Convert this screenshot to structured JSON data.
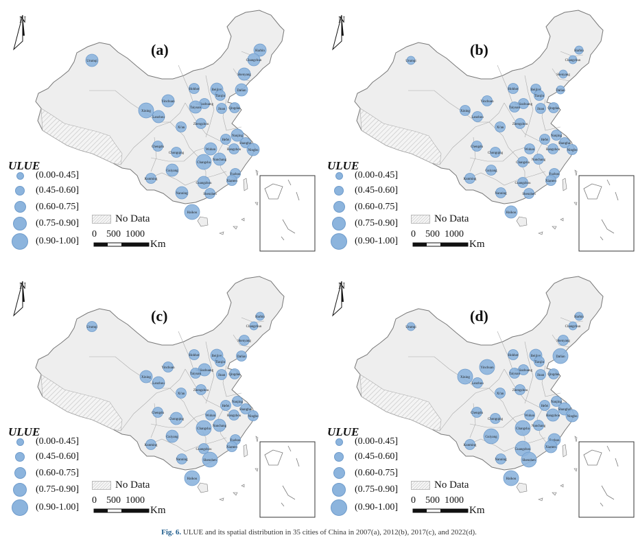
{
  "panels": [
    {
      "id": "a",
      "label": "(a)",
      "sizes": [
        1,
        1,
        1,
        1,
        1,
        1,
        1,
        1,
        1,
        1,
        1,
        1,
        1,
        1,
        1,
        1,
        1,
        1,
        1,
        1,
        1,
        1,
        1,
        1,
        1,
        1,
        1,
        1,
        1,
        1,
        1,
        1,
        1,
        1,
        1
      ]
    },
    {
      "id": "b",
      "label": "(b)",
      "sizes": [
        1,
        1,
        1,
        1,
        1,
        1,
        1,
        1,
        1,
        1,
        1,
        1,
        1,
        1,
        1,
        1,
        1,
        1,
        1,
        1,
        1,
        1,
        1,
        1,
        1,
        1,
        1,
        1,
        1,
        1,
        1,
        1,
        1,
        1,
        1
      ]
    },
    {
      "id": "c",
      "label": "(c)",
      "sizes": [
        1,
        1,
        1,
        1,
        1,
        1,
        1,
        1,
        1,
        1,
        1,
        1,
        1,
        1,
        1,
        1,
        1,
        1,
        1,
        1,
        1,
        1,
        1,
        1,
        1,
        1,
        1,
        1,
        1,
        1,
        1,
        1,
        1,
        1,
        1
      ]
    },
    {
      "id": "d",
      "label": "(d)",
      "sizes": [
        1,
        1,
        1,
        1,
        1,
        1,
        1,
        1,
        1,
        1,
        1,
        1,
        1,
        1,
        1,
        1,
        1,
        1,
        1,
        1,
        1,
        1,
        1,
        1,
        1,
        1,
        1,
        1,
        1,
        1,
        1,
        1,
        1,
        1,
        1
      ]
    }
  ],
  "cities": [
    "Urumqi",
    "Harbin",
    "Changchun",
    "Shenyang",
    "Dalian",
    "Hohhot",
    "Beijing",
    "Tianjin",
    "Shijiazhuang",
    "Taiyuan",
    "Jinan",
    "Qingdao",
    "Yinchuan",
    "Xining",
    "Lanzhou",
    "Xi'an",
    "Zhengzhou",
    "Nanjing",
    "Hefei",
    "Shanghai",
    "Hangzhou",
    "Ningbo",
    "Wuhan",
    "Chengdu",
    "Chongqing",
    "Changsha",
    "Nanchang",
    "Fuzhou",
    "Xiamen",
    "Guiyang",
    "Kunming",
    "Nanning",
    "Guangzhou",
    "Shenzhen",
    "Haikou"
  ],
  "legend": {
    "title": "ULUE",
    "classes": [
      "(0.00-0.45]",
      "(0.45-0.60]",
      "(0.60-0.75]",
      "(0.75-0.90]",
      "(0.90-1.00]"
    ],
    "no_data": "No Data"
  },
  "scale": {
    "ticks": "0    500  1000",
    "unit": "Km"
  },
  "north": "N",
  "colors": {
    "symbol": "#8cb4dd",
    "land": "#eeeeee",
    "border": "#777777"
  },
  "caption_bold": "Fig. 6.",
  "caption_text": " ULUE and its spatial distribution in 35 cities of China in 2007(a), 2012(b), 2017(c), and 2022(d)."
}
